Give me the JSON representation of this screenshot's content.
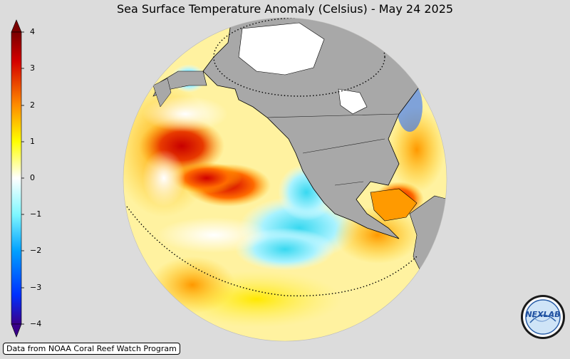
{
  "title": "Sea Surface Temperature Anomaly (Celsius) - May 24 2025",
  "colorbar": {
    "ticks": [
      "4",
      "3",
      "2",
      "1",
      "0",
      "−1",
      "−2",
      "−3",
      "−4"
    ],
    "colors": [
      "#4b0082",
      "#0000ff",
      "#1e90ff",
      "#00ffff",
      "#ffffff",
      "#ffff00",
      "#ffa500",
      "#ff0000",
      "#8b0000"
    ]
  },
  "credit": "Data from NOAA Coral Reef Watch Program",
  "logo": {
    "text": "NEXLAB",
    "icon": "nexlab-logo-icon"
  }
}
